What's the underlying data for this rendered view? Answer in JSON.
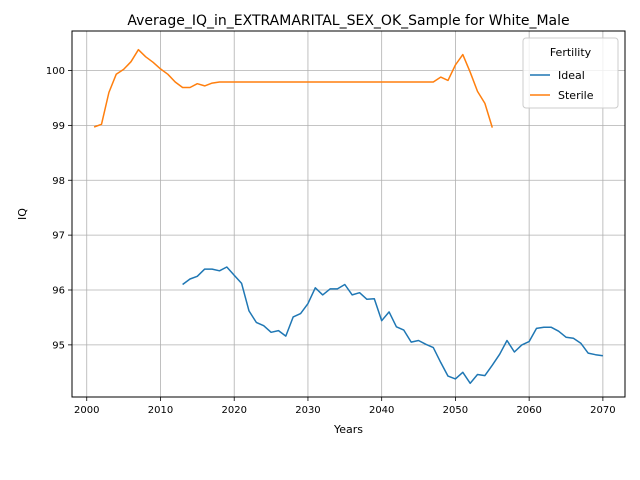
{
  "chart_data": {
    "type": "line",
    "title": "Average_IQ_in_EXTRAMARITAL_SEX_OK_Sample for White_Male",
    "xlabel": "Years",
    "ylabel": "IQ",
    "xlim": [
      1998,
      2073
    ],
    "ylim": [
      94.05,
      100.72
    ],
    "xticks": [
      2000,
      2010,
      2020,
      2030,
      2040,
      2050,
      2060,
      2070
    ],
    "yticks": [
      95,
      96,
      97,
      98,
      99,
      100
    ],
    "grid": true,
    "legend": {
      "title": "Fertility",
      "placement": "top-right"
    },
    "series": [
      {
        "name": "Ideal",
        "color": "#1f77b4",
        "x": [
          2013,
          2014,
          2015,
          2016,
          2017,
          2018,
          2019,
          2020,
          2021,
          2022,
          2023,
          2024,
          2025,
          2026,
          2027,
          2028,
          2029,
          2030,
          2031,
          2032,
          2033,
          2034,
          2035,
          2036,
          2037,
          2038,
          2039,
          2040,
          2041,
          2042,
          2043,
          2044,
          2045,
          2046,
          2047,
          2048,
          2049,
          2050,
          2051,
          2052,
          2053,
          2054,
          2055,
          2056,
          2057,
          2058,
          2059,
          2060,
          2061,
          2062,
          2063,
          2064,
          2065,
          2066,
          2067,
          2068,
          2069,
          2070
        ],
        "y": [
          96.1,
          96.2,
          96.25,
          96.38,
          96.38,
          96.35,
          96.42,
          96.27,
          96.12,
          95.62,
          95.41,
          95.35,
          95.23,
          95.26,
          95.16,
          95.51,
          95.57,
          95.75,
          96.04,
          95.91,
          96.02,
          96.02,
          96.1,
          95.91,
          95.95,
          95.83,
          95.84,
          95.44,
          95.6,
          95.33,
          95.27,
          95.05,
          95.08,
          95.01,
          94.95,
          94.68,
          94.43,
          94.38,
          94.5,
          94.3,
          94.46,
          94.44,
          94.63,
          94.83,
          95.08,
          94.87,
          95.0,
          95.06,
          95.3,
          95.32,
          95.32,
          95.25,
          95.14,
          95.12,
          95.03,
          94.85,
          94.82,
          94.8
        ]
      },
      {
        "name": "Sterile",
        "color": "#ff7f0e",
        "x": [
          2001,
          2002,
          2003,
          2004,
          2005,
          2006,
          2007,
          2008,
          2009,
          2010,
          2011,
          2012,
          2013,
          2014,
          2015,
          2016,
          2017,
          2018,
          2019,
          2020,
          2021,
          2022,
          2023,
          2024,
          2025,
          2026,
          2027,
          2028,
          2029,
          2030,
          2031,
          2032,
          2033,
          2034,
          2035,
          2036,
          2037,
          2038,
          2039,
          2040,
          2041,
          2042,
          2043,
          2044,
          2045,
          2046,
          2047,
          2048,
          2049,
          2050,
          2051,
          2052,
          2053,
          2054,
          2055
        ],
        "y": [
          98.97,
          99.02,
          99.6,
          99.93,
          100.02,
          100.16,
          100.38,
          100.25,
          100.15,
          100.03,
          99.93,
          99.79,
          99.69,
          99.69,
          99.76,
          99.72,
          99.77,
          99.79,
          99.79,
          99.79,
          99.79,
          99.79,
          99.79,
          99.79,
          99.79,
          99.79,
          99.79,
          99.79,
          99.79,
          99.79,
          99.79,
          99.79,
          99.79,
          99.79,
          99.79,
          99.79,
          99.79,
          99.79,
          99.79,
          99.79,
          99.79,
          99.79,
          99.79,
          99.79,
          99.79,
          99.79,
          99.79,
          99.88,
          99.82,
          100.1,
          100.29,
          99.97,
          99.62,
          99.4,
          98.96
        ]
      }
    ]
  }
}
